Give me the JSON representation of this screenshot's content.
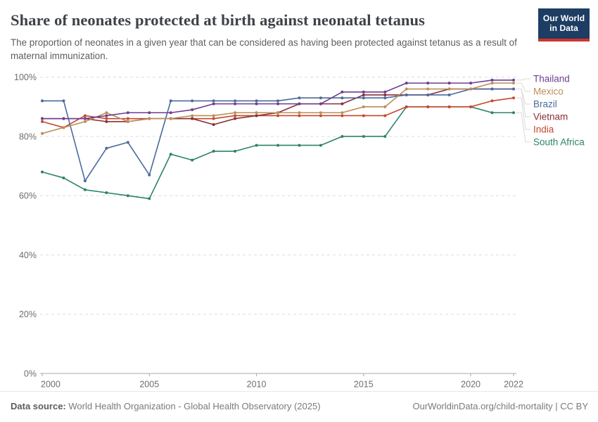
{
  "header": {
    "title": "Share of neonates protected at birth against neonatal tetanus",
    "subtitle": "The proportion of neonates in a given year that can be considered as having been protected against tetanus as a result of maternal immunization.",
    "logo": {
      "line1": "Our World",
      "line2": "in Data"
    }
  },
  "chart_data": {
    "type": "line",
    "title": "Share of neonates protected at birth against neonatal tetanus",
    "x": [
      2000,
      2001,
      2002,
      2003,
      2004,
      2005,
      2006,
      2007,
      2008,
      2009,
      2010,
      2011,
      2012,
      2013,
      2014,
      2015,
      2016,
      2017,
      2018,
      2019,
      2020,
      2021,
      2022
    ],
    "series": [
      {
        "name": "Thailand",
        "color": "#6D3E91",
        "values": [
          86,
          86,
          86,
          87,
          88,
          88,
          88,
          89,
          91,
          91,
          91,
          91,
          91,
          91,
          95,
          95,
          95,
          98,
          98,
          98,
          98,
          99,
          99
        ]
      },
      {
        "name": "Mexico",
        "color": "#BC8E5A",
        "values": [
          81,
          83,
          85,
          88,
          85,
          86,
          86,
          87,
          87,
          88,
          88,
          88,
          88,
          88,
          88,
          90,
          90,
          96,
          96,
          96,
          96,
          98,
          98
        ]
      },
      {
        "name": "Brazil",
        "color": "#4C6A9C",
        "values": [
          92,
          92,
          65,
          76,
          78,
          67,
          92,
          92,
          92,
          92,
          92,
          92,
          93,
          93,
          93,
          93,
          93,
          94,
          94,
          94,
          96,
          96,
          96
        ]
      },
      {
        "name": "Vietnam",
        "color": "#883039",
        "values": [
          86,
          86,
          86,
          85,
          85,
          86,
          86,
          86,
          84,
          86,
          87,
          88,
          91,
          91,
          91,
          94,
          94,
          94,
          94,
          96,
          96,
          96,
          96
        ]
      },
      {
        "name": "India",
        "color": "#C4492D",
        "values": [
          85,
          83,
          87,
          86,
          86,
          86,
          86,
          86,
          86,
          87,
          87,
          87,
          87,
          87,
          87,
          87,
          87,
          90,
          90,
          90,
          90,
          92,
          93
        ]
      },
      {
        "name": "South Africa",
        "color": "#2C8465",
        "values": [
          68,
          66,
          62,
          61,
          60,
          59,
          74,
          72,
          75,
          75,
          77,
          77,
          77,
          77,
          80,
          80,
          80,
          90,
          90,
          90,
          90,
          88,
          88
        ]
      }
    ],
    "ylim": [
      0,
      100
    ],
    "yticks": [
      0,
      20,
      40,
      60,
      80,
      100
    ],
    "ytick_labels": [
      "0%",
      "20%",
      "40%",
      "60%",
      "80%",
      "100%"
    ],
    "xticks": [
      2000,
      2005,
      2010,
      2015,
      2020,
      2022
    ],
    "grid": "horizontal-dashed",
    "legend_position": "right"
  },
  "footer": {
    "source_label": "Data source:",
    "source_value": "World Health Organization - Global Health Observatory (2025)",
    "right": "OurWorldinData.org/child-mortality | CC BY"
  }
}
